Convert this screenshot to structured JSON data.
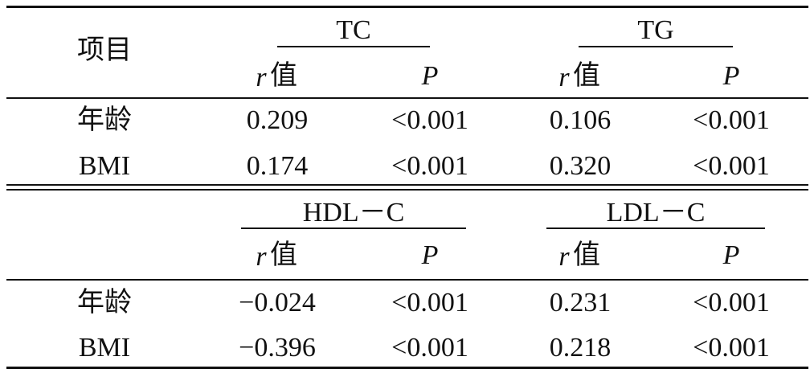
{
  "panels": [
    {
      "header": "项目",
      "groups": [
        "TC",
        "TG"
      ],
      "subheaders": [
        [
          "r",
          "值"
        ],
        [
          "P"
        ],
        [
          "r",
          "值"
        ],
        [
          "P"
        ]
      ],
      "rows": [
        [
          "年龄",
          "0.209",
          "<0.001",
          "0.106",
          "<0.001"
        ],
        [
          "BMI",
          "0.174",
          "<0.001",
          "0.320",
          "<0.001"
        ]
      ]
    },
    {
      "groups": [
        "HDL－C",
        "LDL－C"
      ],
      "subheaders": [
        [
          "r",
          "值"
        ],
        [
          "P"
        ],
        [
          "r",
          "值"
        ],
        [
          "P"
        ]
      ],
      "rows": [
        [
          "年龄",
          "−0.024",
          "<0.001",
          "0.231",
          "<0.001"
        ],
        [
          "BMI",
          "−0.396",
          "<0.001",
          "0.218",
          "<0.001"
        ]
      ]
    }
  ]
}
